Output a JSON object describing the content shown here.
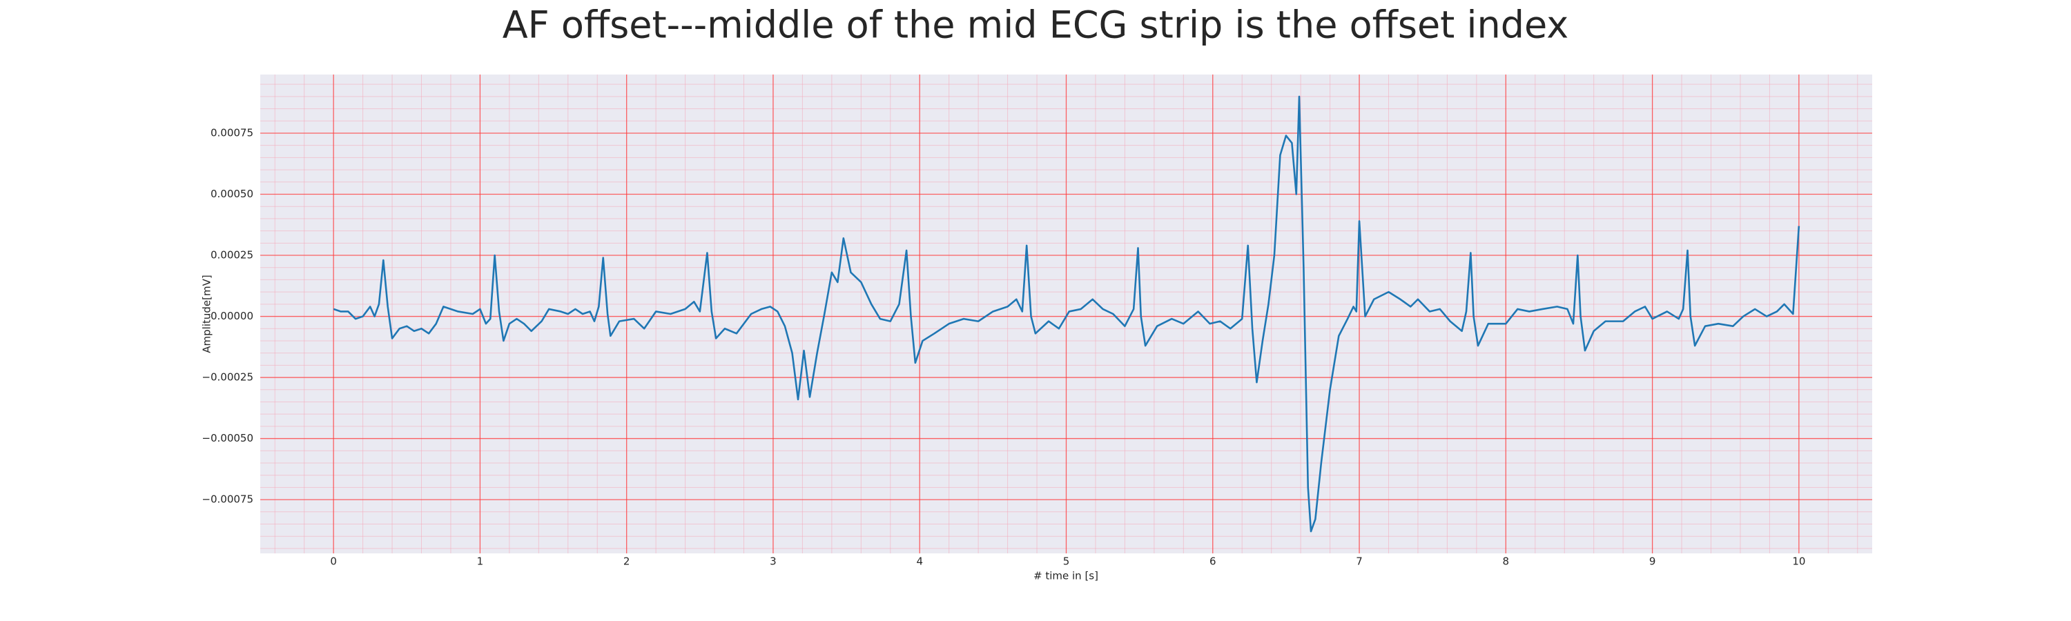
{
  "chart_data": {
    "type": "line",
    "title": "AF offset---middle of the mid ECG strip is the offset index",
    "x_label": "# time in [s]",
    "y_label": "Amplitude[mV]",
    "color": "#1f77b4",
    "grid": true,
    "minor_grid": true,
    "xlim": [
      -0.5,
      10.5
    ],
    "ylim": [
      -0.00097,
      0.00099
    ],
    "xticks": [
      0,
      1,
      2,
      3,
      4,
      5,
      6,
      7,
      8,
      9,
      10
    ],
    "yticks": [
      {
        "value": -0.00075,
        "label": "−0.00075"
      },
      {
        "value": -0.0005,
        "label": "−0.00050"
      },
      {
        "value": -0.00025,
        "label": "−0.00025"
      },
      {
        "value": 0,
        "label": "0.00000"
      },
      {
        "value": 0.00025,
        "label": "0.00025"
      },
      {
        "value": 0.0005,
        "label": "0.00050"
      },
      {
        "value": 0.00075,
        "label": "0.00075"
      }
    ],
    "x": [
      0,
      0.05,
      0.1,
      0.15,
      0.2,
      0.25,
      0.28,
      0.31,
      0.34,
      0.37,
      0.4,
      0.45,
      0.5,
      0.55,
      0.6,
      0.65,
      0.7,
      0.75,
      0.85,
      0.95,
      1.0,
      1.04,
      1.07,
      1.1,
      1.13,
      1.16,
      1.2,
      1.25,
      1.3,
      1.35,
      1.42,
      1.47,
      1.55,
      1.6,
      1.65,
      1.7,
      1.75,
      1.78,
      1.81,
      1.84,
      1.87,
      1.89,
      1.95,
      2.05,
      2.12,
      2.2,
      2.3,
      2.4,
      2.46,
      2.5,
      2.55,
      2.58,
      2.61,
      2.67,
      2.75,
      2.85,
      2.92,
      2.98,
      3.03,
      3.08,
      3.13,
      3.17,
      3.21,
      3.25,
      3.3,
      3.35,
      3.4,
      3.44,
      3.48,
      3.53,
      3.6,
      3.67,
      3.73,
      3.8,
      3.86,
      3.91,
      3.94,
      3.97,
      4.02,
      4.1,
      4.2,
      4.3,
      4.4,
      4.5,
      4.6,
      4.66,
      4.7,
      4.73,
      4.76,
      4.79,
      4.88,
      4.95,
      5.02,
      5.1,
      5.18,
      5.25,
      5.32,
      5.4,
      5.46,
      5.49,
      5.51,
      5.54,
      5.62,
      5.72,
      5.8,
      5.9,
      5.98,
      6.05,
      6.12,
      6.2,
      6.24,
      6.27,
      6.3,
      6.34,
      6.38,
      6.42,
      6.46,
      6.5,
      6.54,
      6.57,
      6.59,
      6.62,
      6.65,
      6.67,
      6.7,
      6.74,
      6.8,
      6.86,
      6.92,
      6.96,
      6.98,
      7.0,
      7.04,
      7.1,
      7.2,
      7.28,
      7.35,
      7.4,
      7.48,
      7.55,
      7.62,
      7.7,
      7.73,
      7.76,
      7.78,
      7.81,
      7.88,
      8.0,
      8.08,
      8.16,
      8.25,
      8.35,
      8.42,
      8.46,
      8.49,
      8.51,
      8.54,
      8.6,
      8.68,
      8.8,
      8.88,
      8.95,
      9.0,
      9.1,
      9.18,
      9.21,
      9.24,
      9.26,
      9.29,
      9.36,
      9.45,
      9.55,
      9.62,
      9.7,
      9.78,
      9.85,
      9.9,
      9.96,
      10.0
    ],
    "values": [
      3e-05,
      2e-05,
      2e-05,
      -1e-05,
      0.0,
      4e-05,
      0.0,
      5e-05,
      0.00023,
      4e-05,
      -9e-05,
      -5e-05,
      -4e-05,
      -6e-05,
      -5e-05,
      -7e-05,
      -3e-05,
      4e-05,
      2e-05,
      1e-05,
      3e-05,
      -3e-05,
      -1e-05,
      0.00025,
      2e-05,
      -0.0001,
      -3e-05,
      -1e-05,
      -3e-05,
      -6e-05,
      -2e-05,
      3e-05,
      2e-05,
      1e-05,
      3e-05,
      1e-05,
      2e-05,
      -2e-05,
      4e-05,
      0.00024,
      1e-05,
      -8e-05,
      -2e-05,
      -1e-05,
      -5e-05,
      2e-05,
      1e-05,
      3e-05,
      6e-05,
      2e-05,
      0.00026,
      2e-05,
      -9e-05,
      -5e-05,
      -7e-05,
      1e-05,
      3e-05,
      4e-05,
      2e-05,
      -4e-05,
      -0.00015,
      -0.00034,
      -0.00014,
      -0.00033,
      -0.00015,
      1e-05,
      0.00018,
      0.00014,
      0.00032,
      0.00018,
      0.00014,
      5e-05,
      -1e-05,
      -2e-05,
      5e-05,
      0.00027,
      0.0,
      -0.00019,
      -0.0001,
      -7e-05,
      -3e-05,
      -1e-05,
      -2e-05,
      2e-05,
      4e-05,
      7e-05,
      2e-05,
      0.00029,
      0.0,
      -7e-05,
      -2e-05,
      -5e-05,
      2e-05,
      3e-05,
      7e-05,
      3e-05,
      1e-05,
      -4e-05,
      3e-05,
      0.00028,
      0.0,
      -0.00012,
      -4e-05,
      -1e-05,
      -3e-05,
      2e-05,
      -3e-05,
      -2e-05,
      -5e-05,
      -1e-05,
      0.00029,
      -5e-05,
      -0.00027,
      -0.0001,
      5e-05,
      0.00025,
      0.00066,
      0.00074,
      0.00071,
      0.0005,
      0.0009,
      0.0002,
      -0.0007,
      -0.00088,
      -0.00083,
      -0.0006,
      -0.0003,
      -8e-05,
      -1e-05,
      4e-05,
      2e-05,
      0.00039,
      0.0,
      7e-05,
      0.0001,
      7e-05,
      4e-05,
      7e-05,
      2e-05,
      3e-05,
      -2e-05,
      -6e-05,
      2e-05,
      0.00026,
      0.0,
      -0.00012,
      -3e-05,
      -3e-05,
      3e-05,
      2e-05,
      3e-05,
      4e-05,
      3e-05,
      -3e-05,
      0.00025,
      0.0,
      -0.00014,
      -6e-05,
      -2e-05,
      -2e-05,
      2e-05,
      4e-05,
      -1e-05,
      2e-05,
      -1e-05,
      3e-05,
      0.00027,
      0.0,
      -0.00012,
      -4e-05,
      -3e-05,
      -4e-05,
      0.0,
      3e-05,
      0.0,
      2e-05,
      5e-05,
      1e-05,
      0.00037
    ]
  }
}
